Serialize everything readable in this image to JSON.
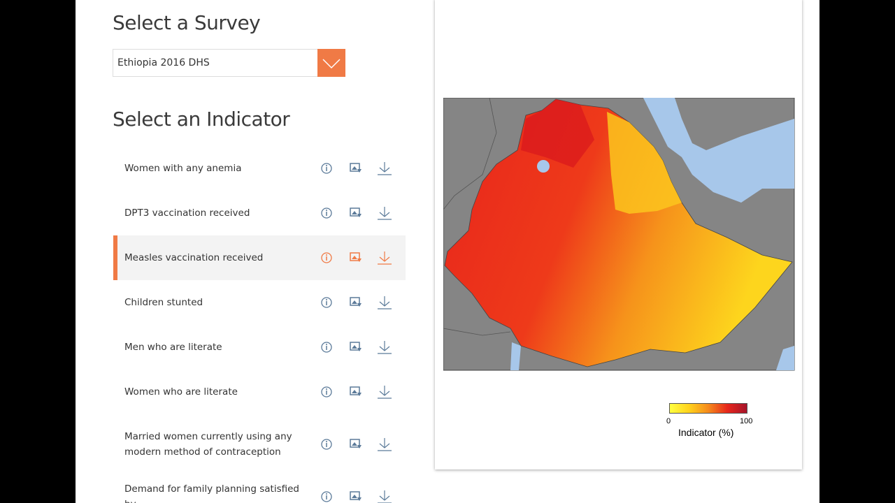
{
  "survey": {
    "title": "Select a Survey",
    "selected": "Ethiopia 2016 DHS"
  },
  "indicators": {
    "title": "Select an Indicator",
    "items": [
      {
        "label": "Women with any anemia"
      },
      {
        "label": "DPT3 vaccination received"
      },
      {
        "label": "Measles vaccination received",
        "selected": true
      },
      {
        "label": "Children stunted"
      },
      {
        "label": "Men who are literate"
      },
      {
        "label": "Women who are literate"
      },
      {
        "label": "Married women currently using any modern method of contraception"
      },
      {
        "label": "Demand for family planning satisfied by"
      }
    ]
  },
  "map": {
    "legend": {
      "min": 0,
      "max": 100,
      "title": "Indicator (%)"
    }
  }
}
